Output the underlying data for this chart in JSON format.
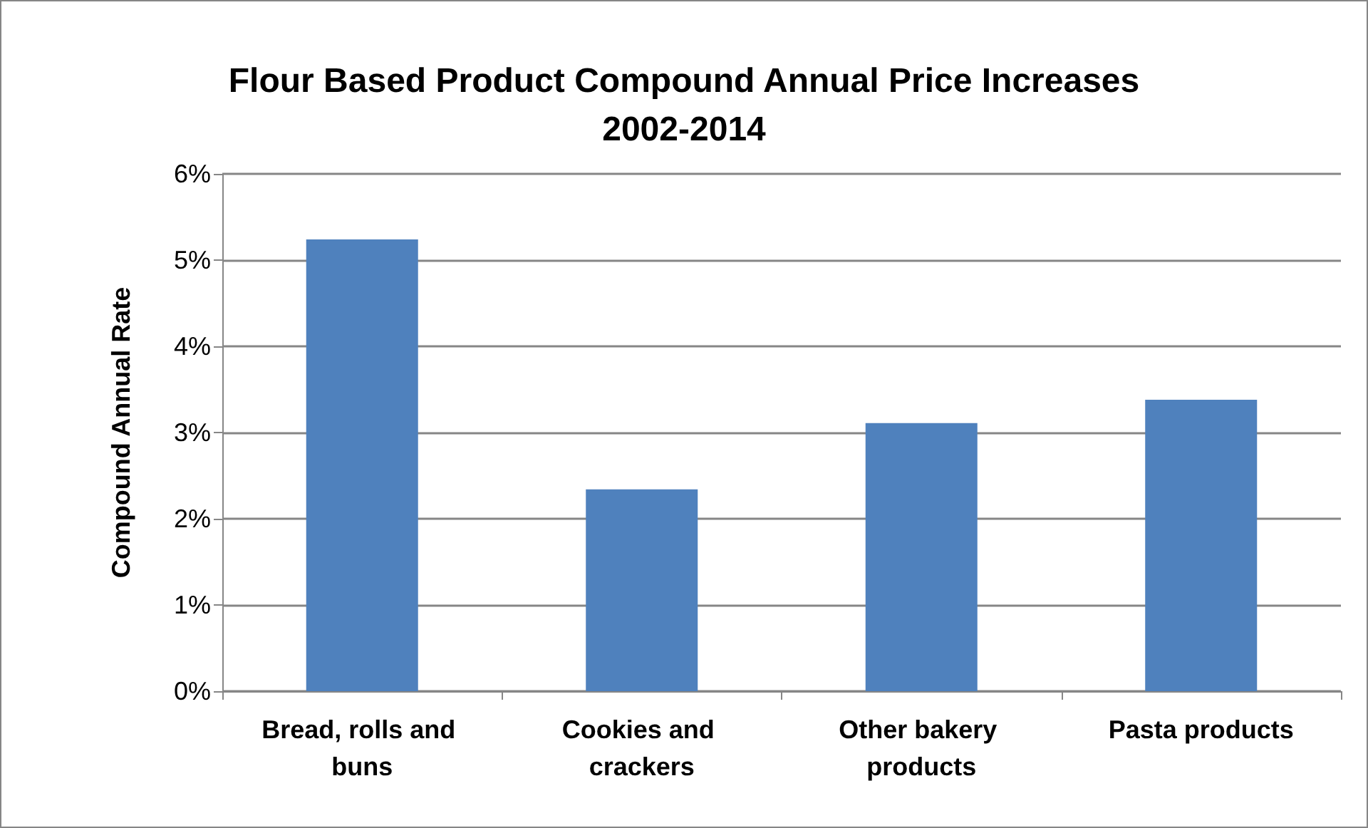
{
  "chart_data": {
    "type": "bar",
    "title": "Flour Based Product Compound Annual Price Increases\n2002-2014",
    "ylabel": "Compound Annual Rate",
    "categories": [
      "Bread, rolls and buns",
      "Cookies and crackers",
      "Other bakery products",
      "Pasta products"
    ],
    "values": [
      5.24,
      2.34,
      3.11,
      3.38
    ],
    "color": "#4f81bd",
    "ylim": [
      0,
      6
    ],
    "yticks": [
      {
        "value": 0,
        "label": "0%"
      },
      {
        "value": 1,
        "label": "1%"
      },
      {
        "value": 2,
        "label": "2%"
      },
      {
        "value": 3,
        "label": "3%"
      },
      {
        "value": 4,
        "label": "4%"
      },
      {
        "value": 5,
        "label": "5%"
      },
      {
        "value": 6,
        "label": "6%"
      }
    ],
    "grid": true
  }
}
